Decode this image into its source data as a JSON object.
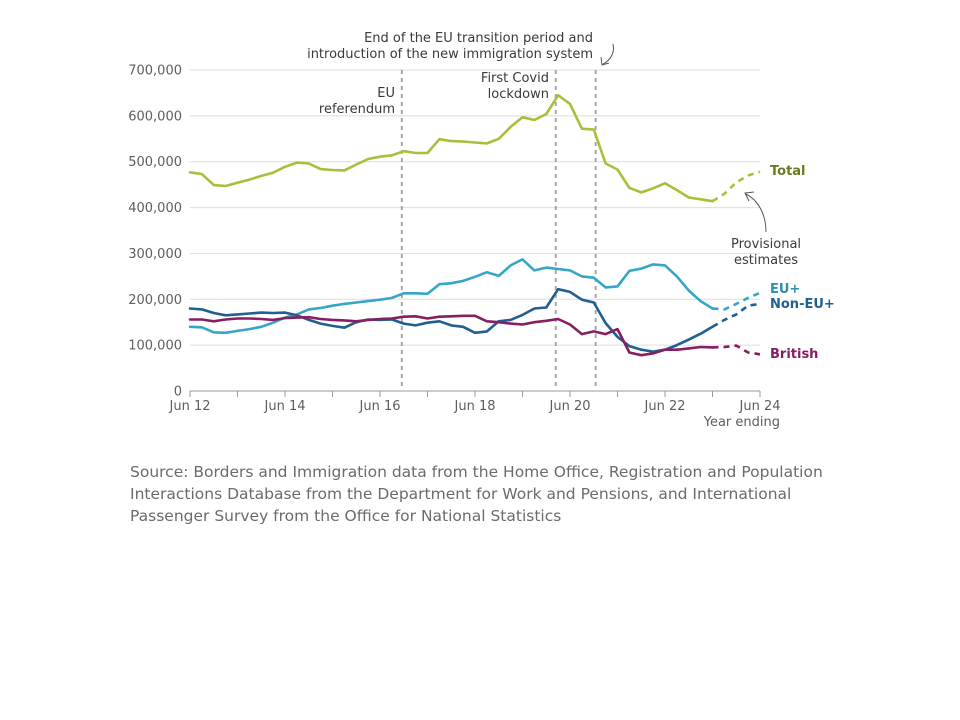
{
  "chart_data": {
    "type": "line",
    "y_ticks": [
      "0",
      "100,000",
      "200,000",
      "300,000",
      "400,000",
      "500,000",
      "600,000",
      "700,000"
    ],
    "y_tick_values": [
      0,
      100000,
      200000,
      300000,
      400000,
      500000,
      600000,
      700000
    ],
    "ylim": [
      0,
      700000
    ],
    "x_range": [
      2012.5,
      2024.5
    ],
    "x_ticks": [
      {
        "label": "Jun 12",
        "value": 2012.5
      },
      {
        "label": "Jun 14",
        "value": 2014.5
      },
      {
        "label": "Jun 16",
        "value": 2016.5
      },
      {
        "label": "Jun 18",
        "value": 2018.5
      },
      {
        "label": "Jun 20",
        "value": 2020.5
      },
      {
        "label": "Jun 22",
        "value": 2022.5
      },
      {
        "label": "Jun 24",
        "value": 2024.5
      }
    ],
    "xlabel": "Year ending",
    "grid": true,
    "series": [
      {
        "name": "Total",
        "color": "#a8bf3a",
        "label_color": "#6a7a1e",
        "values": [
          [
            2012.5,
            477000
          ],
          [
            2012.75,
            473000
          ],
          [
            2013,
            449000
          ],
          [
            2013.25,
            447000
          ],
          [
            2013.5,
            454000
          ],
          [
            2013.75,
            461000
          ],
          [
            2014,
            469000
          ],
          [
            2014.25,
            476000
          ],
          [
            2014.5,
            489000
          ],
          [
            2014.75,
            498000
          ],
          [
            2015,
            496000
          ],
          [
            2015.25,
            484000
          ],
          [
            2015.5,
            482000
          ],
          [
            2015.75,
            481000
          ],
          [
            2016,
            494000
          ],
          [
            2016.25,
            506000
          ],
          [
            2016.5,
            511000
          ],
          [
            2016.75,
            514000
          ],
          [
            2017,
            523000
          ],
          [
            2017.25,
            519000
          ],
          [
            2017.5,
            519000
          ],
          [
            2017.75,
            549000
          ],
          [
            2018,
            545000
          ],
          [
            2018.25,
            544000
          ],
          [
            2018.5,
            542000
          ],
          [
            2018.75,
            540000
          ],
          [
            2019,
            550000
          ],
          [
            2019.25,
            576000
          ],
          [
            2019.5,
            597000
          ],
          [
            2019.75,
            591000
          ],
          [
            2020,
            604000
          ],
          [
            2020.25,
            645000
          ],
          [
            2020.5,
            626000
          ],
          [
            2020.75,
            572000
          ],
          [
            2021,
            570000
          ],
          [
            2021.25,
            496000
          ],
          [
            2021.5,
            483000
          ],
          [
            2021.75,
            443000
          ],
          [
            2022,
            433000
          ],
          [
            2022.25,
            442000
          ],
          [
            2022.5,
            453000
          ],
          [
            2022.75,
            438000
          ],
          [
            2023,
            422000
          ],
          [
            2023.25,
            418000
          ],
          [
            2023.5,
            414000
          ]
        ],
        "provisional": [
          [
            2023.5,
            414000
          ],
          [
            2023.75,
            430000
          ],
          [
            2024,
            455000
          ],
          [
            2024.25,
            470000
          ],
          [
            2024.5,
            478000
          ]
        ]
      },
      {
        "name": "EU+",
        "color": "#35a6c8",
        "label_color": "#2b8fb0",
        "values": [
          [
            2012.5,
            140000
          ],
          [
            2012.75,
            139000
          ],
          [
            2013,
            128000
          ],
          [
            2013.25,
            127000
          ],
          [
            2013.5,
            131000
          ],
          [
            2013.75,
            135000
          ],
          [
            2014,
            140000
          ],
          [
            2014.25,
            149000
          ],
          [
            2014.5,
            160000
          ],
          [
            2014.75,
            167000
          ],
          [
            2015,
            178000
          ],
          [
            2015.25,
            181000
          ],
          [
            2015.5,
            186000
          ],
          [
            2015.75,
            190000
          ],
          [
            2016,
            193000
          ],
          [
            2016.25,
            196000
          ],
          [
            2016.5,
            199000
          ],
          [
            2016.75,
            203000
          ],
          [
            2017,
            213000
          ],
          [
            2017.25,
            213000
          ],
          [
            2017.5,
            212000
          ],
          [
            2017.75,
            233000
          ],
          [
            2018,
            235000
          ],
          [
            2018.25,
            240000
          ],
          [
            2018.5,
            249000
          ],
          [
            2018.75,
            259000
          ],
          [
            2019,
            251000
          ],
          [
            2019.25,
            274000
          ],
          [
            2019.5,
            287000
          ],
          [
            2019.75,
            263000
          ],
          [
            2020,
            269000
          ],
          [
            2020.25,
            266000
          ],
          [
            2020.5,
            263000
          ],
          [
            2020.75,
            250000
          ],
          [
            2021,
            247000
          ],
          [
            2021.25,
            226000
          ],
          [
            2021.5,
            228000
          ],
          [
            2021.75,
            262000
          ],
          [
            2022,
            267000
          ],
          [
            2022.25,
            276000
          ],
          [
            2022.5,
            274000
          ],
          [
            2022.75,
            250000
          ],
          [
            2023,
            219000
          ],
          [
            2023.25,
            196000
          ],
          [
            2023.5,
            180000
          ]
        ],
        "provisional": [
          [
            2023.5,
            180000
          ],
          [
            2023.75,
            178000
          ],
          [
            2024,
            190000
          ],
          [
            2024.25,
            203000
          ],
          [
            2024.5,
            214000
          ]
        ]
      },
      {
        "name": "Non-EU+",
        "color": "#206090",
        "label_color": "#206090",
        "values": [
          [
            2012.5,
            180000
          ],
          [
            2012.75,
            178000
          ],
          [
            2013,
            170000
          ],
          [
            2013.25,
            165000
          ],
          [
            2013.5,
            167000
          ],
          [
            2013.75,
            169000
          ],
          [
            2014,
            171000
          ],
          [
            2014.25,
            170000
          ],
          [
            2014.5,
            171000
          ],
          [
            2014.75,
            165000
          ],
          [
            2015,
            155000
          ],
          [
            2015.25,
            147000
          ],
          [
            2015.5,
            142000
          ],
          [
            2015.75,
            138000
          ],
          [
            2016,
            150000
          ],
          [
            2016.25,
            156000
          ],
          [
            2016.5,
            155000
          ],
          [
            2016.75,
            156000
          ],
          [
            2017,
            147000
          ],
          [
            2017.25,
            143000
          ],
          [
            2017.5,
            149000
          ],
          [
            2017.75,
            152000
          ],
          [
            2018,
            143000
          ],
          [
            2018.25,
            140000
          ],
          [
            2018.5,
            127000
          ],
          [
            2018.75,
            130000
          ],
          [
            2019,
            152000
          ],
          [
            2019.25,
            155000
          ],
          [
            2019.5,
            166000
          ],
          [
            2019.75,
            180000
          ],
          [
            2020,
            182000
          ],
          [
            2020.25,
            222000
          ],
          [
            2020.5,
            216000
          ],
          [
            2020.75,
            199000
          ],
          [
            2021,
            193000
          ],
          [
            2021.25,
            148000
          ],
          [
            2021.5,
            118000
          ],
          [
            2021.75,
            98000
          ],
          [
            2022,
            90000
          ],
          [
            2022.25,
            86000
          ],
          [
            2022.5,
            90000
          ],
          [
            2022.75,
            100000
          ],
          [
            2023,
            112000
          ],
          [
            2023.25,
            125000
          ],
          [
            2023.5,
            140000
          ]
        ],
        "provisional": [
          [
            2023.5,
            140000
          ],
          [
            2023.75,
            155000
          ],
          [
            2024,
            167000
          ],
          [
            2024.25,
            186000
          ],
          [
            2024.5,
            190000
          ]
        ]
      },
      {
        "name": "British",
        "color": "#881e62",
        "label_color": "#881e62",
        "values": [
          [
            2012.5,
            156000
          ],
          [
            2012.75,
            156000
          ],
          [
            2013,
            152000
          ],
          [
            2013.25,
            156000
          ],
          [
            2013.5,
            158000
          ],
          [
            2013.75,
            158000
          ],
          [
            2014,
            157000
          ],
          [
            2014.25,
            155000
          ],
          [
            2014.5,
            159000
          ],
          [
            2014.75,
            160000
          ],
          [
            2015,
            161000
          ],
          [
            2015.25,
            157000
          ],
          [
            2015.5,
            155000
          ],
          [
            2015.75,
            154000
          ],
          [
            2016,
            152000
          ],
          [
            2016.25,
            155000
          ],
          [
            2016.5,
            157000
          ],
          [
            2016.75,
            158000
          ],
          [
            2017,
            162000
          ],
          [
            2017.25,
            163000
          ],
          [
            2017.5,
            158000
          ],
          [
            2017.75,
            162000
          ],
          [
            2018,
            163000
          ],
          [
            2018.25,
            164000
          ],
          [
            2018.5,
            164000
          ],
          [
            2018.75,
            152000
          ],
          [
            2019,
            150000
          ],
          [
            2019.25,
            147000
          ],
          [
            2019.5,
            145000
          ],
          [
            2019.75,
            150000
          ],
          [
            2020,
            153000
          ],
          [
            2020.25,
            157000
          ],
          [
            2020.5,
            145000
          ],
          [
            2020.75,
            124000
          ],
          [
            2021,
            130000
          ],
          [
            2021.25,
            124000
          ],
          [
            2021.5,
            135000
          ],
          [
            2021.75,
            84000
          ],
          [
            2022,
            78000
          ],
          [
            2022.25,
            82000
          ],
          [
            2022.5,
            90000
          ],
          [
            2022.75,
            90000
          ],
          [
            2023,
            93000
          ],
          [
            2023.25,
            96000
          ],
          [
            2023.5,
            95000
          ]
        ],
        "provisional": [
          [
            2023.5,
            95000
          ],
          [
            2023.75,
            96000
          ],
          [
            2024,
            99000
          ],
          [
            2024.25,
            84000
          ],
          [
            2024.5,
            80000
          ]
        ]
      }
    ],
    "events": [
      {
        "x": 2016.96,
        "label_lines": [
          "EU",
          "referendum"
        ]
      },
      {
        "x": 2020.2,
        "label_lines": [
          "First Covid",
          "lockdown"
        ]
      },
      {
        "x": 2021.04,
        "label_lines": [
          "End of the EU transition period and",
          "introduction of the new immigration system"
        ]
      }
    ],
    "annotation": {
      "label_lines": [
        "Provisional",
        "estimates"
      ]
    }
  },
  "source": "Source: Borders and Immigration data from the Home Office, Registration and Population Interactions Database from the Department for Work and Pensions, and International Passenger Survey from the Office for National Statistics"
}
